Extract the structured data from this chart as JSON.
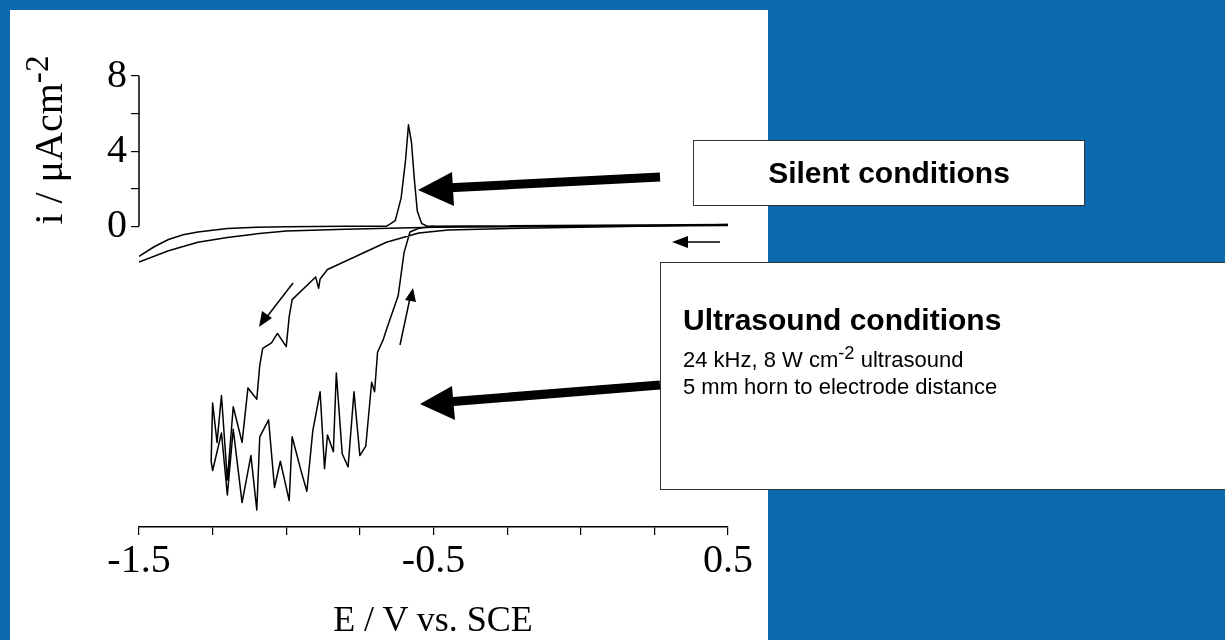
{
  "chart_data": {
    "type": "line",
    "xlabel": "E / V vs. SCE",
    "ylabel": "i / μAcm$^{-2}$",
    "xlim": [
      -1.5,
      0.5
    ],
    "ylim": [
      -16,
      8
    ],
    "xticks": [
      -1.5,
      {
        "value": -1.25,
        "label": null
      },
      {
        "value": -1,
        "label": null
      },
      {
        "value": -0.75,
        "label": null
      },
      -0.5,
      {
        "value": -0.25,
        "label": null
      },
      {
        "value": 0,
        "label": null
      },
      {
        "value": 0.25,
        "label": null
      },
      0.5
    ],
    "yticks": [
      0,
      {
        "value": 2,
        "label": null
      },
      4,
      {
        "value": 6,
        "label": null
      },
      8
    ],
    "grid": false,
    "legend": false,
    "marker": "none",
    "series": [
      {
        "color": "#000000",
        "x": [
          -1.5,
          -1.45,
          -1.4,
          -1.35,
          -1.3,
          -1.2,
          -1.1,
          -1.0,
          -0.8,
          -0.66,
          -0.63,
          -0.61,
          -0.595,
          -0.585,
          -0.575,
          -0.565,
          -0.555,
          -0.54,
          -0.52,
          0.5,
          0.5,
          -0.5,
          -0.8,
          -1.0,
          -1.1,
          -1.2,
          -1.3,
          -1.4,
          -1.5
        ],
        "values": [
          -1.6,
          -1.1,
          -0.7,
          -0.45,
          -0.3,
          -0.12,
          -0.05,
          -0.02,
          0,
          0,
          0.3,
          1.5,
          3.5,
          5.4,
          4.5,
          2.5,
          0.8,
          0.15,
          0,
          0.1,
          0.05,
          -0.05,
          -0.15,
          -0.25,
          -0.4,
          -0.6,
          -0.85,
          -1.3,
          -1.9
        ]
      },
      {
        "color": "#000000",
        "x": [
          0.5,
          0.2,
          -0.2,
          -0.45,
          -0.55,
          -0.66,
          -0.75,
          -0.86,
          -0.885,
          -0.89,
          -0.9,
          -0.98,
          -0.99,
          -1.0,
          -1.03,
          -1.05,
          -1.08,
          -1.09,
          -1.1,
          -1.13,
          -1.15,
          -1.18,
          -1.2,
          -1.22,
          -1.235,
          -1.25,
          -1.255,
          -1.25,
          -1.22,
          -1.2,
          -1.18,
          -1.15,
          -1.12,
          -1.1,
          -1.09,
          -1.06,
          -1.04,
          -1.02,
          -0.99,
          -0.98,
          -0.95,
          -0.93,
          -0.91,
          -0.885,
          -0.87,
          -0.86,
          -0.84,
          -0.83,
          -0.81,
          -0.79,
          -0.77,
          -0.75,
          -0.73,
          -0.71,
          -0.7,
          -0.69,
          -0.67,
          -0.66,
          -0.64,
          -0.62,
          -0.6,
          -0.58,
          -0.55,
          -0.5
        ],
        "values": [
          0.1,
          0,
          -0.1,
          -0.2,
          -0.35,
          -0.85,
          -1.5,
          -2.3,
          -2.8,
          -3.3,
          -2.7,
          -3.9,
          -4.8,
          -6.4,
          -5.7,
          -6.2,
          -6.5,
          -7.4,
          -9.2,
          -8.6,
          -11.5,
          -9.6,
          -13.5,
          -9.0,
          -11.5,
          -9.4,
          -12.5,
          -13.0,
          -11.0,
          -14.3,
          -10.8,
          -14.7,
          -12.2,
          -15.1,
          -11.2,
          -10.3,
          -13.9,
          -12.5,
          -14.6,
          -11.2,
          -13.0,
          -14.1,
          -10.9,
          -8.8,
          -12.9,
          -11.1,
          -12.0,
          -7.8,
          -12.1,
          -12.8,
          -8.8,
          -12.2,
          -11.7,
          -8.3,
          -8.8,
          -6.7,
          -6.0,
          -5.5,
          -4.6,
          -3.7,
          -1.4,
          -0.3,
          -0.1,
          0
        ]
      }
    ],
    "annotations": [
      "Silent conditions",
      "Ultrasound conditions",
      "24 kHz, 8 W cm$^{-2}$ ultrasound",
      "5 mm horn to electrode distance"
    ]
  }
}
